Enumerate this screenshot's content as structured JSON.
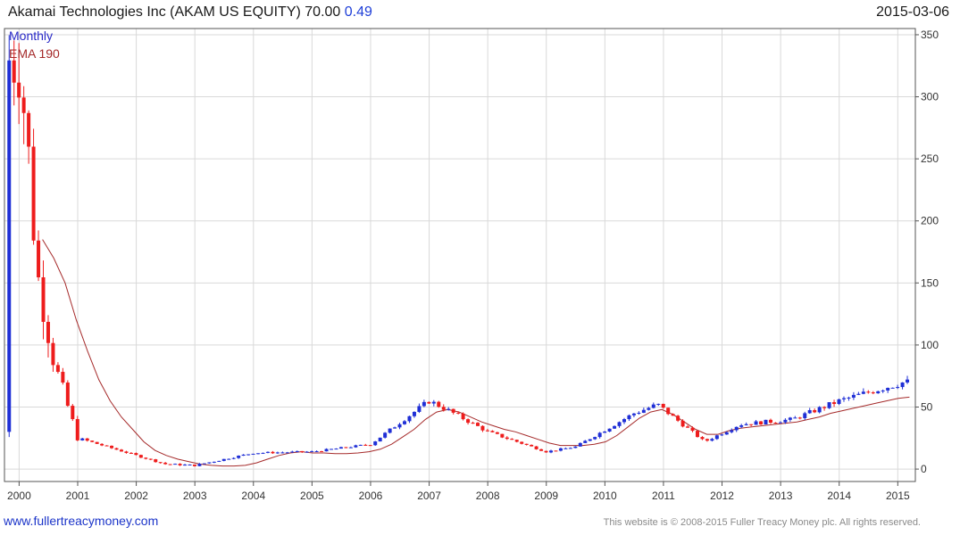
{
  "header": {
    "name": "Akamai Technologies Inc (AKAM US EQUITY)",
    "price": "70.00",
    "change": "0.49",
    "date": "2015-03-06"
  },
  "footer": {
    "site": "www.fullertreacymoney.com",
    "copyright": "This website is © 2008-2015 Fuller Treacy Money plc. All rights reserved."
  },
  "colors": {
    "up": "#1f2fd6",
    "down": "#ee1c1c",
    "ema": "#a52a2a",
    "grid": "#d9d9d9",
    "frame": "#555555"
  },
  "chart_data": {
    "type": "candlestick",
    "legend": [
      "Monthly",
      "EMA 190"
    ],
    "legend_placement": "top-left",
    "y_axis_side": "right",
    "ylim": [
      -10,
      355
    ],
    "yticks": [
      0,
      50,
      100,
      150,
      200,
      250,
      300,
      350
    ],
    "xlim": [
      1999.75,
      2015.3
    ],
    "xticks": [
      "2000",
      "2001",
      "2002",
      "2003",
      "2004",
      "2005",
      "2006",
      "2007",
      "2008",
      "2009",
      "2010",
      "2011",
      "2012",
      "2013",
      "2014",
      "2015"
    ],
    "grid": true,
    "ema_start": 2000.4,
    "ema_values": [
      185,
      170,
      150,
      120,
      95,
      72,
      55,
      42,
      32,
      22,
      15,
      11,
      8,
      6,
      4,
      3,
      2.5,
      2.5,
      3,
      5,
      8,
      11,
      13,
      14,
      13,
      13,
      12.5,
      12.5,
      13,
      14,
      16,
      20,
      26,
      32,
      40,
      46,
      48,
      46,
      42,
      38,
      35,
      32,
      30,
      27,
      24,
      21,
      19,
      19,
      19,
      20,
      22,
      27,
      34,
      41,
      46,
      48,
      44,
      38,
      32,
      28,
      28,
      31,
      33,
      34,
      35,
      36,
      37,
      38,
      40,
      42,
      45,
      47,
      49,
      51,
      53,
      55,
      57,
      58
    ],
    "key_points": [
      [
        2000.0,
        330
      ],
      [
        2000.15,
        260
      ],
      [
        2000.3,
        160
      ],
      [
        2000.6,
        85
      ],
      [
        2001.0,
        25
      ],
      [
        2002.5,
        4
      ],
      [
        2003.0,
        3
      ],
      [
        2004.0,
        13
      ],
      [
        2005.0,
        14
      ],
      [
        2006.0,
        20
      ],
      [
        2007.0,
        55
      ],
      [
        2007.3,
        48
      ],
      [
        2008.0,
        30
      ],
      [
        2009.0,
        14
      ],
      [
        2009.5,
        18
      ],
      [
        2010.5,
        45
      ],
      [
        2010.9,
        52
      ],
      [
        2011.7,
        22
      ],
      [
        2012.3,
        36
      ],
      [
        2013.2,
        40
      ],
      [
        2014.0,
        55
      ],
      [
        2014.5,
        62
      ],
      [
        2015.1,
        70
      ]
    ]
  }
}
